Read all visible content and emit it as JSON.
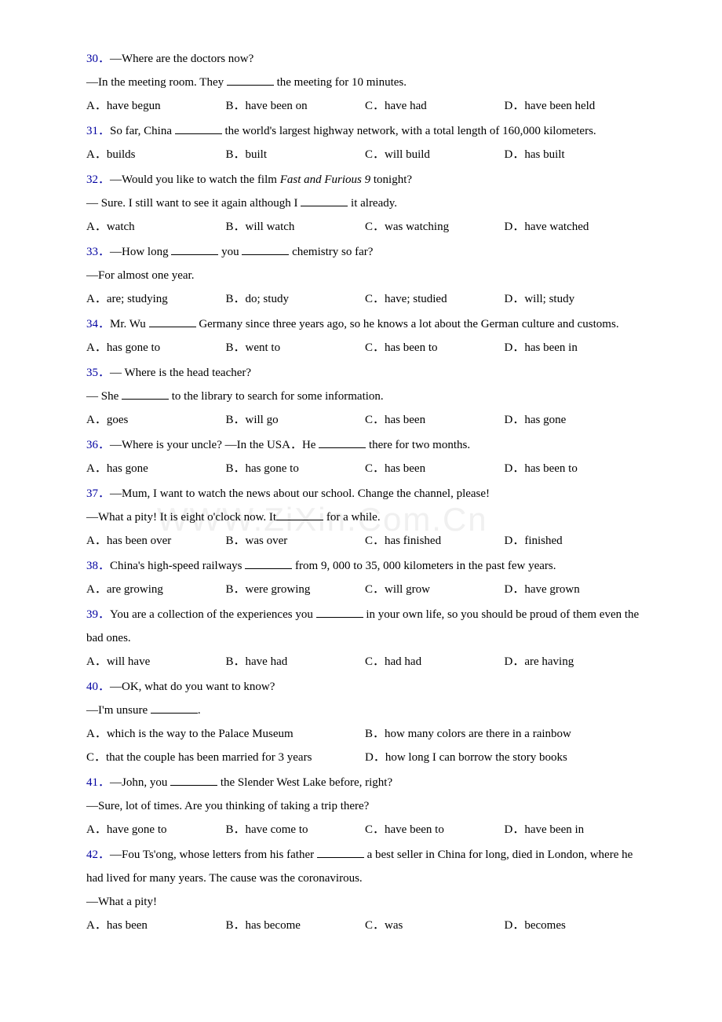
{
  "colors": {
    "qnum": "#0000a0",
    "text": "#000000",
    "bg": "#ffffff",
    "watermark": "#f0f0f0"
  },
  "typography": {
    "font_family": "Times New Roman",
    "font_size_pt": 11,
    "line_height": 2.0
  },
  "watermark": "WWW.ZiXin.Com.Cn",
  "questions": [
    {
      "num": "30．",
      "stem_lines": [
        "—Where are the doctors now?",
        "—In the meeting room. They ________ the meeting for 10 minutes."
      ],
      "options": [
        {
          "label": "A．",
          "text": "have begun"
        },
        {
          "label": "B．",
          "text": "have been on"
        },
        {
          "label": "C．",
          "text": "have had"
        },
        {
          "label": "D．",
          "text": "have been held"
        }
      ],
      "opt_layout": "quarter"
    },
    {
      "num": "31．",
      "stem_lines": [
        "So far, China ________ the world's largest highway network, with a total length of 160,000 kilometers."
      ],
      "options": [
        {
          "label": "A．",
          "text": "builds"
        },
        {
          "label": "B．",
          "text": "built"
        },
        {
          "label": "C．",
          "text": "will build"
        },
        {
          "label": "D．",
          "text": "has built"
        }
      ],
      "opt_layout": "quarter"
    },
    {
      "num": "32．",
      "stem_lines": [
        "—Would you like to watch the film {ITALIC}Fast and Furious 9{/ITALIC} tonight?",
        "— Sure. I still want to see it again although I ________ it already."
      ],
      "options": [
        {
          "label": "A．",
          "text": "watch"
        },
        {
          "label": "B．",
          "text": "will watch"
        },
        {
          "label": "C．",
          "text": "was watching"
        },
        {
          "label": "D．",
          "text": "have watched"
        }
      ],
      "opt_layout": "quarter"
    },
    {
      "num": "33．",
      "stem_lines": [
        "—How long ________ you ________ chemistry so far?",
        "—For almost one year."
      ],
      "options": [
        {
          "label": "A．",
          "text": "are; studying"
        },
        {
          "label": "B．",
          "text": "do; study"
        },
        {
          "label": "C．",
          "text": "have; studied"
        },
        {
          "label": "D．",
          "text": "will; study"
        }
      ],
      "opt_layout": "quarter"
    },
    {
      "num": "34．",
      "stem_lines": [
        "Mr. Wu ________ Germany since three years ago, so he knows a lot about the German culture and customs."
      ],
      "options": [
        {
          "label": "A．",
          "text": "has gone to"
        },
        {
          "label": "B．",
          "text": "went to"
        },
        {
          "label": "C．",
          "text": "has been to"
        },
        {
          "label": "D．",
          "text": "has been in"
        }
      ],
      "opt_layout": "quarter"
    },
    {
      "num": "35．",
      "stem_lines": [
        "— Where is the head teacher?",
        "— She ________ to the library to search for some information."
      ],
      "options": [
        {
          "label": "A．",
          "text": "goes"
        },
        {
          "label": "B．",
          "text": "will go"
        },
        {
          "label": "C．",
          "text": "has been"
        },
        {
          "label": "D．",
          "text": "has gone"
        }
      ],
      "opt_layout": "quarter"
    },
    {
      "num": "36．",
      "stem_lines": [
        "—Where is your uncle? —In the USA．He ________ there for two months."
      ],
      "options": [
        {
          "label": "A．",
          "text": "has gone"
        },
        {
          "label": "B．",
          "text": "has gone to"
        },
        {
          "label": "C．",
          "text": "has been"
        },
        {
          "label": "D．",
          "text": "has been to"
        }
      ],
      "opt_layout": "quarter"
    },
    {
      "num": "37．",
      "stem_lines": [
        "—Mum, I want to watch the news about our school. Change the channel, please!",
        "—What a pity! It is eight o'clock now. It__________ for a while."
      ],
      "options": [
        {
          "label": "A．",
          "text": "has been over"
        },
        {
          "label": "B．",
          "text": "was over"
        },
        {
          "label": "C．",
          "text": "has finished"
        },
        {
          "label": "D．",
          "text": "finished"
        }
      ],
      "opt_layout": "quarter"
    },
    {
      "num": "38．",
      "stem_lines": [
        "China's high-speed railways ________ from 9, 000 to 35, 000 kilometers in the past few years."
      ],
      "options": [
        {
          "label": "A．",
          "text": "are growing"
        },
        {
          "label": "B．",
          "text": "were growing"
        },
        {
          "label": "C．",
          "text": "will grow"
        },
        {
          "label": "D．",
          "text": "have grown"
        }
      ],
      "opt_layout": "quarter"
    },
    {
      "num": "39．",
      "stem_lines": [
        "You are a collection of the experiences you ________ in your own life, so you should be proud of them even the bad ones."
      ],
      "options": [
        {
          "label": "A．",
          "text": "will have"
        },
        {
          "label": "B．",
          "text": "have had"
        },
        {
          "label": "C．",
          "text": "had had"
        },
        {
          "label": "D．",
          "text": "are having"
        }
      ],
      "opt_layout": "quarter"
    },
    {
      "num": "40．",
      "stem_lines": [
        "—OK, what do you want to know?",
        "—I'm unsure ________."
      ],
      "options": [
        {
          "label": "A．",
          "text": "which is the way to the Palace Museum"
        },
        {
          "label": "B．",
          "text": "how many colors are there in a rainbow"
        },
        {
          "label": "C．",
          "text": "that the couple has been married for 3 years"
        },
        {
          "label": "D．",
          "text": "how long I can borrow the story books"
        }
      ],
      "opt_layout": "half"
    },
    {
      "num": "41．",
      "stem_lines": [
        "—John, you ________ the Slender West Lake before, right?",
        "—Sure, lot of times. Are you thinking of taking a trip there?"
      ],
      "options": [
        {
          "label": "A．",
          "text": "have gone to"
        },
        {
          "label": "B．",
          "text": "have come to"
        },
        {
          "label": "C．",
          "text": "have been to"
        },
        {
          "label": "D．",
          "text": "have been in"
        }
      ],
      "opt_layout": "quarter"
    },
    {
      "num": "42．",
      "stem_lines": [
        "—Fou Ts'ong, whose letters from his father ________ a best seller in China for long, died in London, where he had lived for many years. The cause was the coronavirous.",
        "—What a pity!"
      ],
      "options": [
        {
          "label": "A．",
          "text": "has been"
        },
        {
          "label": "B．",
          "text": "has become"
        },
        {
          "label": "C．",
          "text": "was"
        },
        {
          "label": "D．",
          "text": "becomes"
        }
      ],
      "opt_layout": "quarter"
    }
  ]
}
